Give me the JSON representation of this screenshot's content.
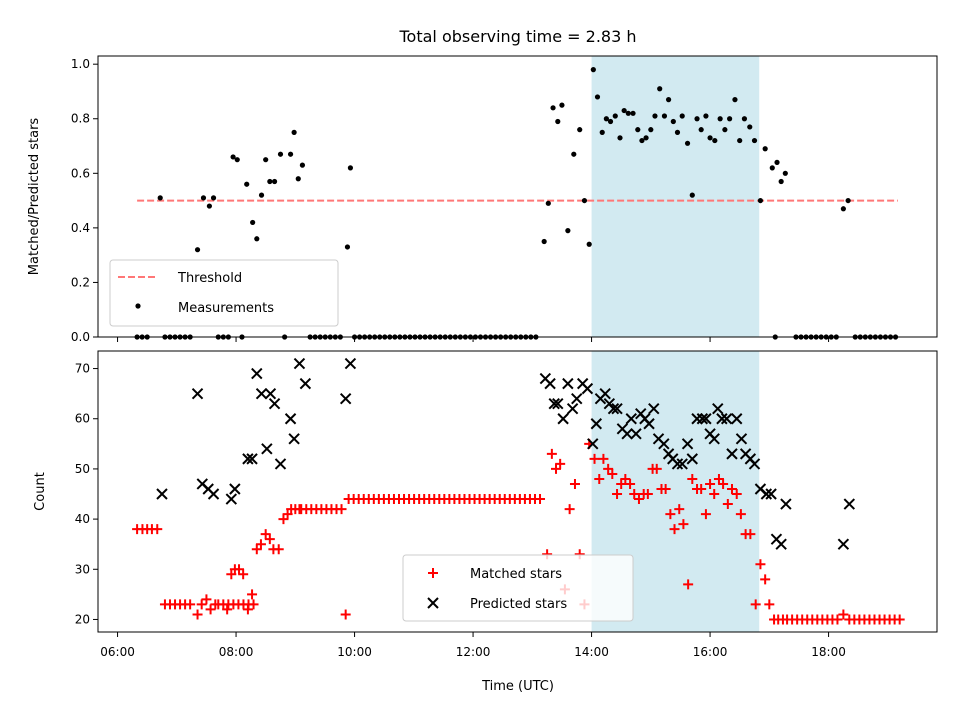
{
  "chart_data": {
    "title": "Total observing time = 2.83 h",
    "xlabel": "Time (UTC)",
    "x_tick_labels": [
      "06:00",
      "08:00",
      "10:00",
      "12:00",
      "14:00",
      "16:00",
      "18:00"
    ],
    "x_ticks_hours": [
      6,
      8,
      10,
      12,
      14,
      16,
      18
    ],
    "xlim_hours": [
      5.67,
      19.83
    ],
    "highlight_interval_hours": [
      14.0,
      16.83
    ],
    "highlight_color": "#add8e6",
    "panels": [
      {
        "type": "scatter",
        "ylabel": "Matched/Predicted stars",
        "ylim": [
          0,
          1.03
        ],
        "y_ticks": [
          0.0,
          0.2,
          0.4,
          0.6,
          0.8,
          1.0
        ],
        "y_tick_labels": [
          "0.0",
          "0.2",
          "0.4",
          "0.6",
          "0.8",
          "1.0"
        ],
        "threshold": {
          "name": "Threshold",
          "y": 0.5,
          "x_range_hours": [
            6.33,
            19.17
          ],
          "color": "#ff7777"
        },
        "legend": {
          "placement": "lower left",
          "entries": [
            "Threshold",
            "Measurements"
          ]
        },
        "series": [
          {
            "name": "Measurements",
            "color": "#000000",
            "marker": "dot",
            "x_hours": [
              6.72,
              7.35,
              7.45,
              7.55,
              7.62,
              7.95,
              8.02,
              8.18,
              8.28,
              8.35,
              8.43,
              8.5,
              8.57,
              8.65,
              8.75,
              8.92,
              8.98,
              9.05,
              9.12,
              9.88,
              9.93,
              13.2,
              13.27,
              13.35,
              13.43,
              13.5,
              13.6,
              13.7,
              13.8,
              13.88,
              13.96,
              14.03,
              14.1,
              14.18,
              14.25,
              14.32,
              14.4,
              14.48,
              14.55,
              14.62,
              14.7,
              14.78,
              14.85,
              14.92,
              15.0,
              15.07,
              15.15,
              15.23,
              15.3,
              15.38,
              15.45,
              15.53,
              15.62,
              15.7,
              15.78,
              15.85,
              15.93,
              16.0,
              16.08,
              16.17,
              16.25,
              16.33,
              16.42,
              16.5,
              16.58,
              16.67,
              16.75,
              16.85,
              16.93,
              17.05,
              17.13,
              17.2,
              17.27,
              18.25,
              18.33
            ],
            "y": [
              0.51,
              0.32,
              0.51,
              0.48,
              0.51,
              0.66,
              0.65,
              0.56,
              0.42,
              0.36,
              0.52,
              0.65,
              0.57,
              0.57,
              0.67,
              0.67,
              0.75,
              0.58,
              0.63,
              0.33,
              0.62,
              0.35,
              0.49,
              0.84,
              0.79,
              0.85,
              0.39,
              0.67,
              0.76,
              0.5,
              0.34,
              0.98,
              0.88,
              0.75,
              0.8,
              0.79,
              0.81,
              0.73,
              0.83,
              0.82,
              0.82,
              0.76,
              0.72,
              0.73,
              0.76,
              0.81,
              0.91,
              0.81,
              0.87,
              0.79,
              0.75,
              0.81,
              0.71,
              0.52,
              0.8,
              0.76,
              0.81,
              0.73,
              0.72,
              0.8,
              0.76,
              0.8,
              0.87,
              0.72,
              0.8,
              0.77,
              0.72,
              0.5,
              0.69,
              0.62,
              0.64,
              0.57,
              0.6,
              0.47,
              0.5
            ],
            "zero_runs_hours": [
              [
                6.33,
                6.58
              ],
              [
                6.8,
                7.27
              ],
              [
                7.7,
                7.9
              ],
              [
                8.1,
                8.15
              ],
              [
                8.82,
                8.82
              ],
              [
                9.25,
                9.83
              ],
              [
                10.0,
                13.1
              ],
              [
                17.1,
                17.12
              ],
              [
                17.45,
                18.15
              ],
              [
                18.45,
                19.2
              ]
            ]
          }
        ]
      },
      {
        "type": "scatter",
        "ylabel": "Count",
        "ylim": [
          17.5,
          73.5
        ],
        "y_ticks": [
          20,
          30,
          40,
          50,
          60,
          70
        ],
        "y_tick_labels": [
          "20",
          "30",
          "40",
          "50",
          "60",
          "70"
        ],
        "legend": {
          "placement": "lower center",
          "entries": [
            "Matched stars",
            "Predicted stars"
          ]
        },
        "series": [
          {
            "name": "Matched stars",
            "color": "#ff0000",
            "marker": "plus",
            "x_hours": [
              6.33,
              6.42,
              6.5,
              6.58,
              6.67,
              7.35,
              7.42,
              7.5,
              7.57,
              7.65,
              7.85,
              7.92,
              7.98,
              8.05,
              8.12,
              8.2,
              8.27,
              8.35,
              8.42,
              8.5,
              8.57,
              8.63,
              8.72,
              8.8,
              8.87,
              8.93,
              9.0,
              9.07,
              9.85,
              13.25,
              13.33,
              13.4,
              13.47,
              13.55,
              13.63,
              13.72,
              13.8,
              13.88,
              13.96,
              14.05,
              14.13,
              14.2,
              14.28,
              14.35,
              14.43,
              14.5,
              14.57,
              14.65,
              14.72,
              14.8,
              14.88,
              14.95,
              15.03,
              15.1,
              15.18,
              15.25,
              15.33,
              15.4,
              15.48,
              15.55,
              15.63,
              15.7,
              15.78,
              15.85,
              15.93,
              16.0,
              16.07,
              16.15,
              16.22,
              16.3,
              16.37,
              16.45,
              16.52,
              16.6,
              16.68,
              16.77,
              16.85,
              16.93,
              17.0,
              17.08,
              17.15,
              17.23,
              18.25
            ],
            "y": [
              38,
              38,
              38,
              38,
              38,
              21,
              23,
              24,
              22,
              23,
              22,
              29,
              30,
              30,
              29,
              22,
              25,
              34,
              35,
              37,
              36,
              34,
              34,
              40,
              41,
              42,
              42,
              42,
              21,
              33,
              53,
              50,
              51,
              26,
              42,
              47,
              33,
              23,
              55,
              52,
              48,
              52,
              50,
              49,
              45,
              47,
              48,
              47,
              45,
              44,
              45,
              45,
              50,
              50,
              46,
              46,
              41,
              38,
              42,
              39,
              27,
              48,
              46,
              46,
              41,
              47,
              45,
              48,
              47,
              43,
              46,
              45,
              41,
              37,
              37,
              23,
              31,
              28,
              23,
              20,
              20,
              20,
              21
            ],
            "flat_runs": [
              {
                "x_range_hours": [
                  6.8,
                  7.3
                ],
                "y": 23
              },
              {
                "x_range_hours": [
                  7.7,
                  8.35
                ],
                "y": 23
              },
              {
                "x_range_hours": [
                  9.1,
                  9.8
                ],
                "y": 42
              },
              {
                "x_range_hours": [
                  9.9,
                  13.15
                ],
                "y": 44
              },
              {
                "x_range_hours": [
                  17.3,
                  18.2
                ],
                "y": 20
              },
              {
                "x_range_hours": [
                  18.35,
                  19.2
                ],
                "y": 20
              }
            ]
          },
          {
            "name": "Predicted stars",
            "color": "#000000",
            "marker": "x",
            "x_hours": [
              6.75,
              7.35,
              7.43,
              7.53,
              7.62,
              7.92,
              7.98,
              8.2,
              8.27,
              8.35,
              8.43,
              8.52,
              8.58,
              8.65,
              8.75,
              8.92,
              8.98,
              9.07,
              9.17,
              9.85,
              9.93,
              13.22,
              13.3,
              13.37,
              13.43,
              13.52,
              13.6,
              13.68,
              13.75,
              13.85,
              13.93,
              14.02,
              14.08,
              14.15,
              14.23,
              14.3,
              14.37,
              14.43,
              14.52,
              14.6,
              14.67,
              14.75,
              14.83,
              14.9,
              14.97,
              15.05,
              15.13,
              15.22,
              15.3,
              15.37,
              15.45,
              15.53,
              15.62,
              15.7,
              15.78,
              15.87,
              15.93,
              16.0,
              16.07,
              16.13,
              16.2,
              16.28,
              16.37,
              16.45,
              16.53,
              16.6,
              16.68,
              16.75,
              16.85,
              16.95,
              17.03,
              17.12,
              17.2,
              17.28,
              18.25,
              18.35
            ],
            "y": [
              45,
              65,
              47,
              46,
              45,
              44,
              46,
              52,
              52,
              69,
              65,
              54,
              65,
              63,
              51,
              60,
              56,
              71,
              67,
              64,
              71,
              68,
              67,
              63,
              63,
              60,
              67,
              62,
              64,
              67,
              66,
              55,
              59,
              64,
              65,
              63,
              62,
              62,
              58,
              57,
              60,
              57,
              61,
              60,
              59,
              62,
              56,
              55,
              53,
              52,
              51,
              51,
              55,
              52,
              60,
              60,
              60,
              57,
              56,
              62,
              60,
              60,
              53,
              60,
              56,
              53,
              52,
              51,
              46,
              45,
              45,
              36,
              35,
              43,
              35,
              43
            ]
          }
        ]
      }
    ]
  }
}
